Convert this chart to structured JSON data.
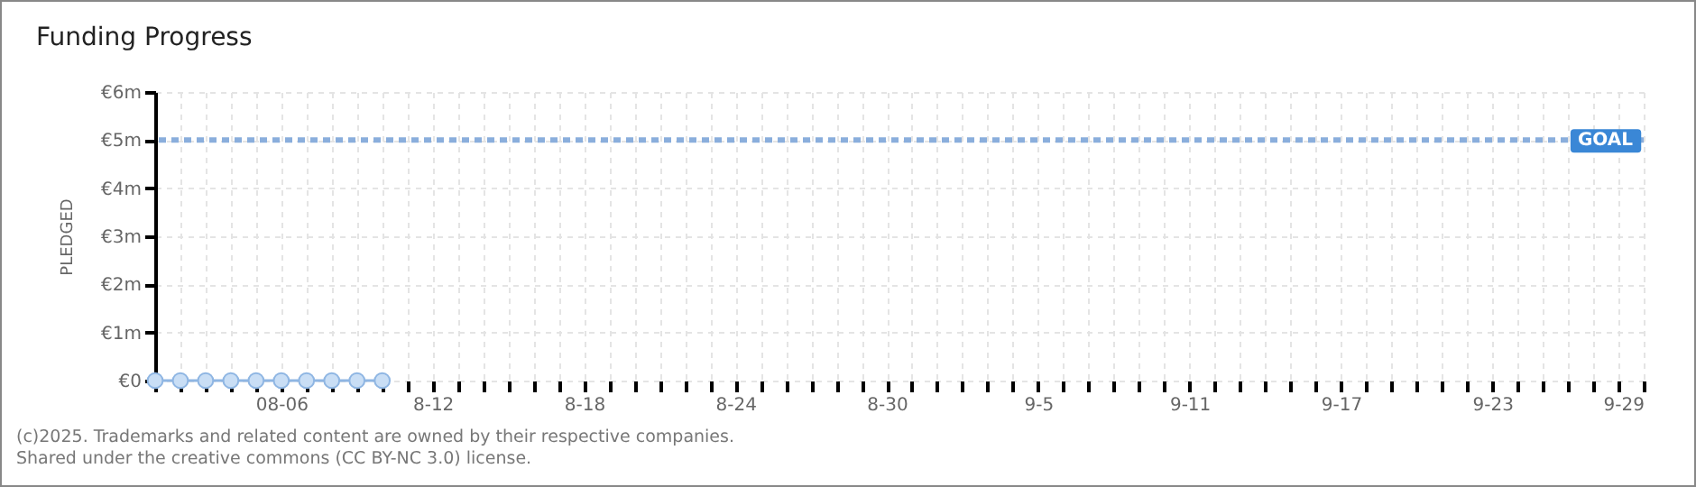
{
  "chart_data": {
    "type": "line",
    "title": "Funding Progress",
    "ylabel": "PLEDGED",
    "x": [
      "--08-01",
      "--08-02",
      "--08-03",
      "--08-04",
      "--08-05",
      "--08-06",
      "--08-07",
      "--08-08",
      "--08-09",
      "--08-10"
    ],
    "series": [
      {
        "color": "#8fb6e3",
        "values": [
          0,
          0,
          0,
          0,
          0,
          0,
          0,
          0,
          0,
          0
        ]
      }
    ],
    "marker": "circle",
    "grid": true,
    "xlim": [
      "--08-01",
      "--09-29"
    ],
    "xticks": [
      {
        "value": "--08-06",
        "label": "08-06"
      },
      {
        "value": "--08-12",
        "label": "8-12"
      },
      {
        "value": "--08-18",
        "label": "8-18"
      },
      {
        "value": "--08-24",
        "label": "8-24"
      },
      {
        "value": "--08-30",
        "label": "8-30"
      },
      {
        "value": "--09-05",
        "label": "9-5"
      },
      {
        "value": "--09-11",
        "label": "9-11"
      },
      {
        "value": "--09-17",
        "label": "9-17"
      },
      {
        "value": "--09-23",
        "label": "9-23"
      },
      {
        "value": "--09-29",
        "label": "9-29"
      }
    ],
    "ylim": [
      0,
      6000000
    ],
    "yticks": [
      {
        "value": 0,
        "label": "€0"
      },
      {
        "value": 1000000,
        "label": "€1m"
      },
      {
        "value": 2000000,
        "label": "€2m"
      },
      {
        "value": 3000000,
        "label": "€3m"
      },
      {
        "value": 4000000,
        "label": "€4m"
      },
      {
        "value": 5000000,
        "label": "€5m"
      },
      {
        "value": 6000000,
        "label": "€6m"
      }
    ],
    "ref_lines": [
      {
        "axis": "y",
        "value": 5000000,
        "label": "GOAL",
        "color": "#8aaedc",
        "line_style": "dashed"
      }
    ],
    "annotations": [
      "(c)2025. Trademarks and related content are owned by their respective companies.",
      "Shared under the creative commons (CC BY-NC 3.0) license."
    ]
  }
}
